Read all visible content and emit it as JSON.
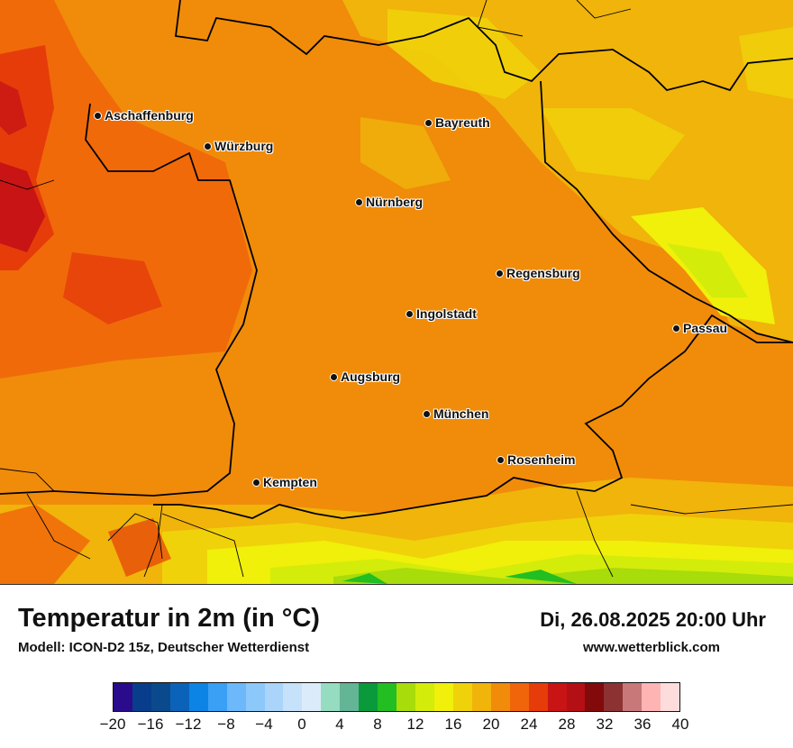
{
  "title": "Temperatur in 2m (in °C)",
  "model": "Modell: ICON-D2 15z, Deutscher Wetterdienst",
  "datetime": "Di, 26.08.2025 20:00 Uhr",
  "website": "www.wetterblick.com",
  "cities": [
    {
      "name": "Aschaffenburg"
    },
    {
      "name": "Würzburg"
    },
    {
      "name": "Bayreuth"
    },
    {
      "name": "Nürnberg"
    },
    {
      "name": "Regensburg"
    },
    {
      "name": "Ingolstadt"
    },
    {
      "name": "Passau"
    },
    {
      "name": "Augsburg"
    },
    {
      "name": "München"
    },
    {
      "name": "Rosenheim"
    },
    {
      "name": "Kempten"
    }
  ],
  "legend": {
    "colors": [
      "#2a0b8c",
      "#083d8c",
      "#0a4a8c",
      "#0a63b8",
      "#0c84e6",
      "#3aa0f5",
      "#6cb8fa",
      "#8cc8fa",
      "#aad4fa",
      "#c6e2fa",
      "#dcebfa",
      "#96dcc0",
      "#64b496",
      "#0a9a3c",
      "#22be22",
      "#a8dc0a",
      "#d4ec0a",
      "#f0f00a",
      "#f0d20a",
      "#f0b40a",
      "#f08c0a",
      "#f0640a",
      "#e63c0a",
      "#c81414",
      "#b40f14",
      "#820a0a",
      "#8c3232",
      "#c87878",
      "#ffb4b4",
      "#ffdcdc"
    ],
    "ticks": [
      "−20",
      "−16",
      "−12",
      "−8",
      "−4",
      "0",
      "4",
      "8",
      "12",
      "16",
      "20",
      "24",
      "28",
      "32",
      "36",
      "40"
    ]
  }
}
